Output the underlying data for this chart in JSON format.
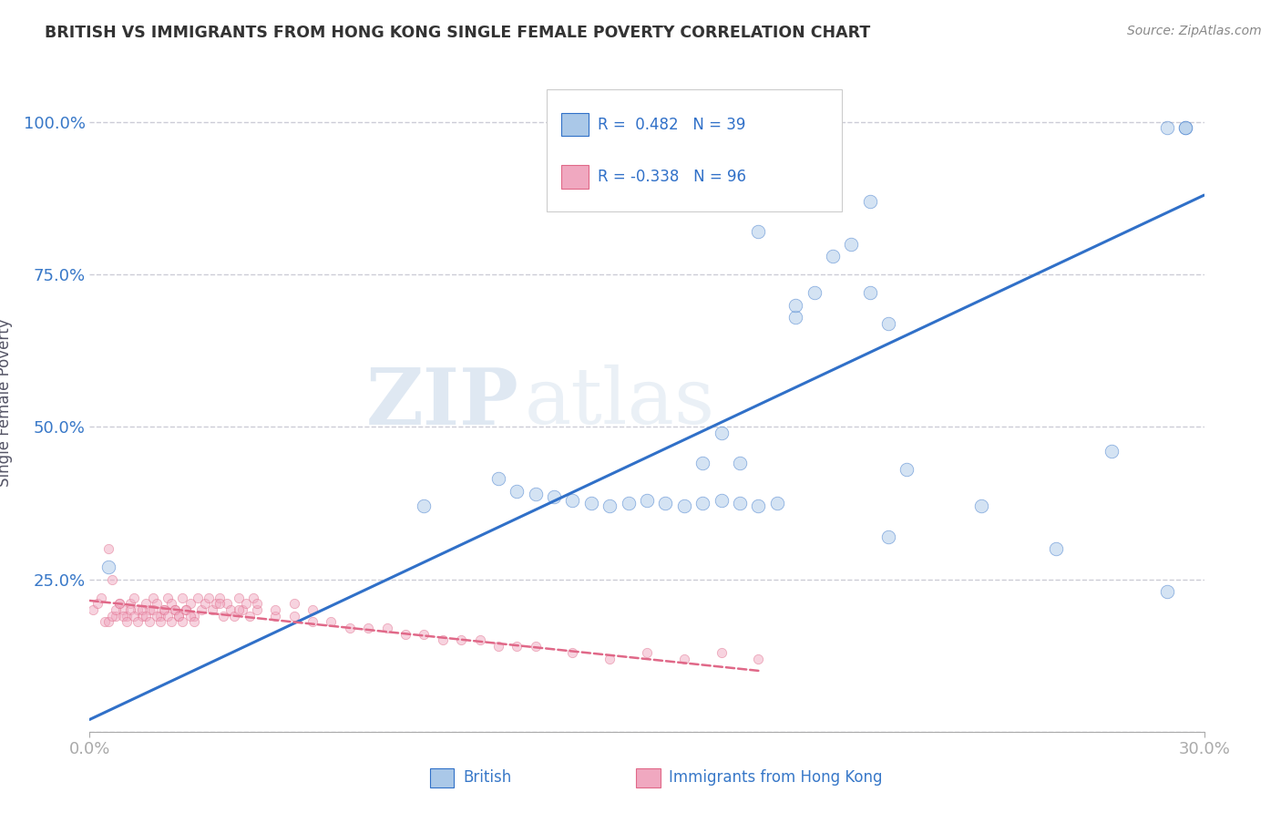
{
  "title": "BRITISH VS IMMIGRANTS FROM HONG KONG SINGLE FEMALE POVERTY CORRELATION CHART",
  "source": "Source: ZipAtlas.com",
  "ylabel": "Single Female Poverty",
  "yticks": [
    0.0,
    0.25,
    0.5,
    0.75,
    1.0
  ],
  "ytick_labels": [
    "",
    "25.0%",
    "50.0%",
    "75.0%",
    "100.0%"
  ],
  "xtick_labels": [
    "0.0%",
    "30.0%"
  ],
  "xmin": 0.0,
  "xmax": 0.3,
  "ymin": 0.0,
  "ymax": 1.08,
  "legend_blue_text": "R =  0.482   N = 39",
  "legend_pink_text": "R = -0.338   N = 96",
  "legend_label_blue": "British",
  "legend_label_pink": "Immigrants from Hong Kong",
  "blue_color": "#aac8e8",
  "blue_line_color": "#3070c8",
  "pink_color": "#f0a8c0",
  "pink_line_color": "#e06888",
  "watermark_zip": "ZIP",
  "watermark_atlas": "atlas",
  "title_color": "#333333",
  "axis_label_color": "#3878c8",
  "blue_line_x": [
    0.0,
    0.3
  ],
  "blue_line_y": [
    0.02,
    0.88
  ],
  "pink_line_x": [
    0.0,
    0.18
  ],
  "pink_line_y": [
    0.215,
    0.1
  ],
  "blue_scatter_x": [
    0.005,
    0.09,
    0.11,
    0.115,
    0.12,
    0.125,
    0.13,
    0.135,
    0.14,
    0.145,
    0.15,
    0.155,
    0.16,
    0.165,
    0.17,
    0.175,
    0.18,
    0.185,
    0.19,
    0.195,
    0.2,
    0.205,
    0.21,
    0.215,
    0.22,
    0.165,
    0.175,
    0.18,
    0.19,
    0.21,
    0.24,
    0.26,
    0.275,
    0.29,
    0.295,
    0.29,
    0.295,
    0.17,
    0.215
  ],
  "blue_scatter_y": [
    0.27,
    0.37,
    0.415,
    0.395,
    0.39,
    0.385,
    0.38,
    0.375,
    0.37,
    0.375,
    0.38,
    0.375,
    0.37,
    0.375,
    0.38,
    0.375,
    0.37,
    0.375,
    0.68,
    0.72,
    0.78,
    0.8,
    0.72,
    0.67,
    0.43,
    0.44,
    0.44,
    0.82,
    0.7,
    0.87,
    0.37,
    0.3,
    0.46,
    0.23,
    0.99,
    0.99,
    0.99,
    0.49,
    0.32
  ],
  "pink_scatter_x": [
    0.001,
    0.002,
    0.003,
    0.004,
    0.005,
    0.006,
    0.007,
    0.008,
    0.009,
    0.01,
    0.011,
    0.012,
    0.013,
    0.014,
    0.015,
    0.016,
    0.017,
    0.018,
    0.019,
    0.02,
    0.021,
    0.022,
    0.023,
    0.024,
    0.025,
    0.026,
    0.027,
    0.028,
    0.029,
    0.03,
    0.031,
    0.032,
    0.033,
    0.034,
    0.035,
    0.036,
    0.037,
    0.038,
    0.039,
    0.04,
    0.041,
    0.042,
    0.043,
    0.044,
    0.045,
    0.005,
    0.006,
    0.007,
    0.008,
    0.009,
    0.01,
    0.011,
    0.012,
    0.013,
    0.014,
    0.015,
    0.016,
    0.017,
    0.018,
    0.019,
    0.02,
    0.021,
    0.022,
    0.023,
    0.024,
    0.025,
    0.026,
    0.027,
    0.028,
    0.05,
    0.055,
    0.06,
    0.065,
    0.07,
    0.075,
    0.08,
    0.085,
    0.09,
    0.095,
    0.1,
    0.105,
    0.11,
    0.115,
    0.12,
    0.13,
    0.14,
    0.15,
    0.16,
    0.17,
    0.18,
    0.035,
    0.04,
    0.045,
    0.05,
    0.055,
    0.06
  ],
  "pink_scatter_y": [
    0.2,
    0.21,
    0.22,
    0.18,
    0.3,
    0.25,
    0.19,
    0.21,
    0.2,
    0.19,
    0.21,
    0.22,
    0.2,
    0.19,
    0.21,
    0.2,
    0.22,
    0.21,
    0.19,
    0.2,
    0.22,
    0.21,
    0.2,
    0.19,
    0.22,
    0.2,
    0.21,
    0.19,
    0.22,
    0.2,
    0.21,
    0.22,
    0.2,
    0.21,
    0.22,
    0.19,
    0.21,
    0.2,
    0.19,
    0.22,
    0.2,
    0.21,
    0.19,
    0.22,
    0.2,
    0.18,
    0.19,
    0.2,
    0.21,
    0.19,
    0.18,
    0.2,
    0.19,
    0.18,
    0.2,
    0.19,
    0.18,
    0.2,
    0.19,
    0.18,
    0.2,
    0.19,
    0.18,
    0.2,
    0.19,
    0.18,
    0.2,
    0.19,
    0.18,
    0.19,
    0.19,
    0.18,
    0.18,
    0.17,
    0.17,
    0.17,
    0.16,
    0.16,
    0.15,
    0.15,
    0.15,
    0.14,
    0.14,
    0.14,
    0.13,
    0.12,
    0.13,
    0.12,
    0.13,
    0.12,
    0.21,
    0.2,
    0.21,
    0.2,
    0.21,
    0.2
  ],
  "scatter_size_blue": 110,
  "scatter_size_pink": 55,
  "scatter_alpha": 0.5,
  "background_color": "#ffffff",
  "grid_color": "#c0c0cc",
  "grid_alpha": 0.8
}
